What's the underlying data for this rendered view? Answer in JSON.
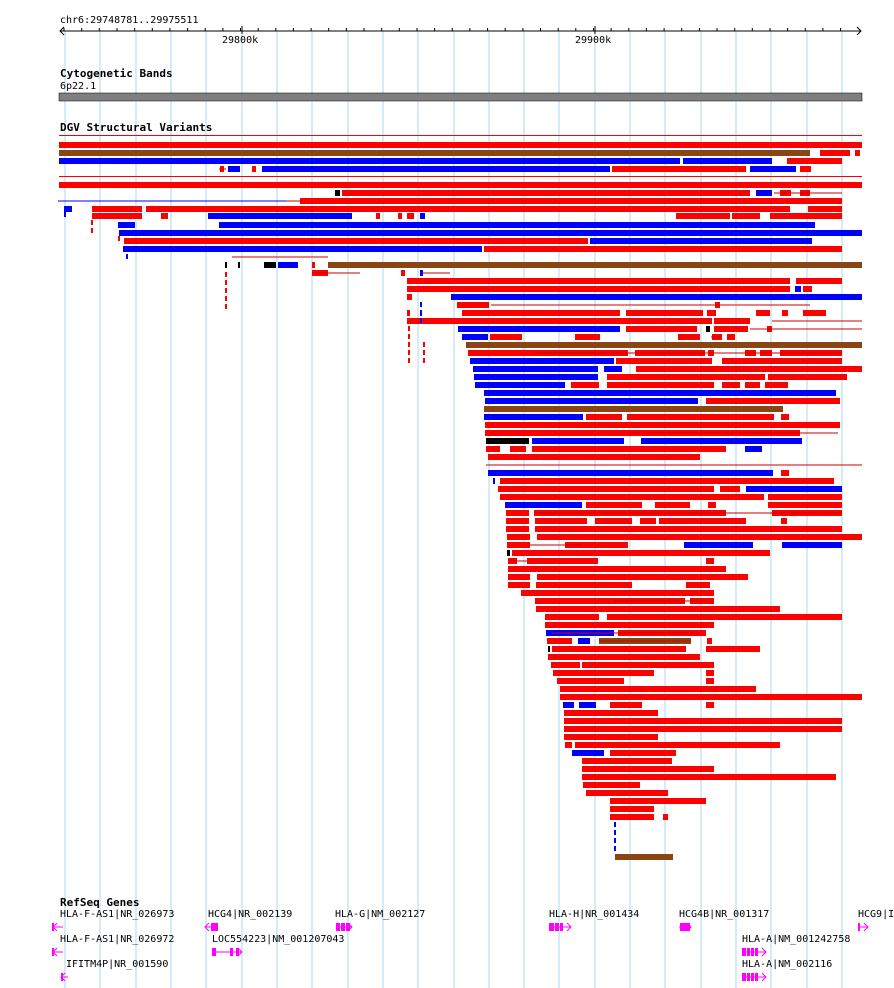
{
  "ruler": {
    "coordinates": "chr6:29748781..29975511",
    "ticks": [
      "29800k",
      "29900k"
    ]
  },
  "tracks": {
    "cytoband": {
      "title": "Cytogenetic Bands",
      "band": "6p22.1",
      "band_color": "#7f7f7f"
    },
    "dgv": {
      "title": "DGV Structural Variants",
      "colors": {
        "loss": "#ff0000",
        "gain": "#0000ff",
        "gain_loss": "#8b4513",
        "inversion": "#000000",
        "connector": "#cc0000"
      }
    },
    "refseq": {
      "title": "RefSeq Genes",
      "color": "#ff00ff",
      "genes": [
        {
          "id": "g1",
          "label": "HLA-F-AS1|NR_026973"
        },
        {
          "id": "g2",
          "label": "HLA-F-AS1|NR_026972"
        },
        {
          "id": "g3",
          "label": "IFITM4P|NR_001590"
        },
        {
          "id": "g4",
          "label": "HCG4|NR_002139"
        },
        {
          "id": "g5",
          "label": "LOC554223|NM_001207043"
        },
        {
          "id": "g6",
          "label": "HLA-G|NM_002127"
        },
        {
          "id": "g7",
          "label": "HLA-H|NR_001434"
        },
        {
          "id": "g8",
          "label": "HCG4B|NR_001317"
        },
        {
          "id": "g9",
          "label": "HLA-A|NM_001242758"
        },
        {
          "id": "g10",
          "label": "HLA-A|NM_002116"
        },
        {
          "id": "g11",
          "label": "HCG9|I"
        }
      ]
    }
  },
  "grid_color": "#a8d8f0"
}
